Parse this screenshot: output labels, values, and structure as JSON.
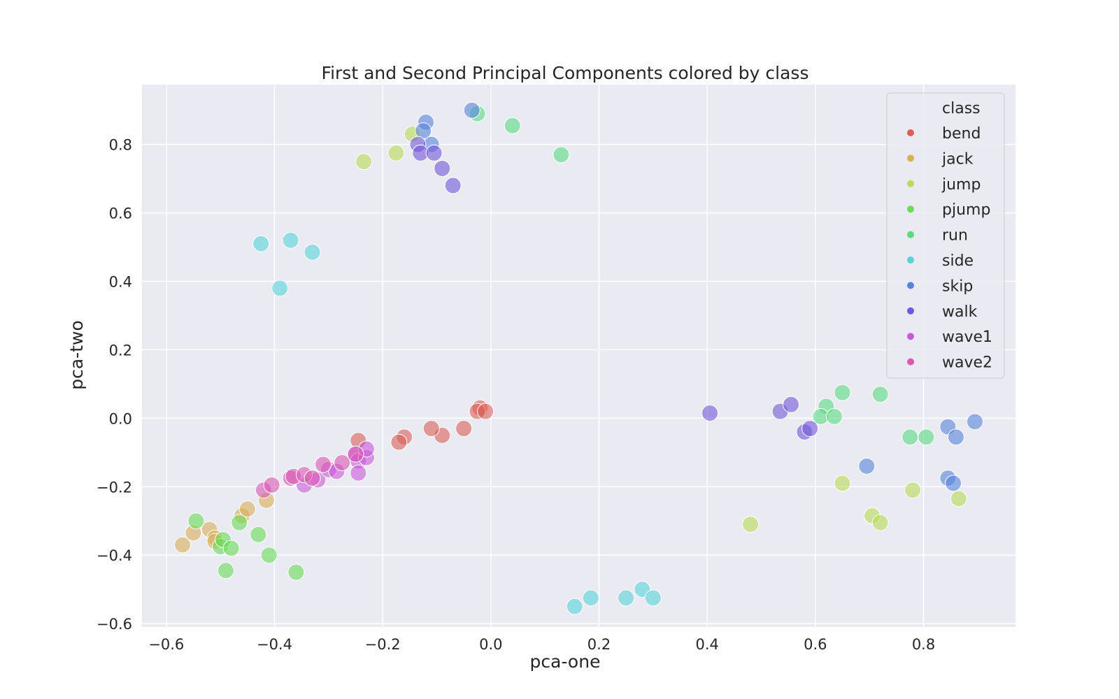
{
  "chart_data": {
    "type": "scatter",
    "title": "First and Second Principal Components colored by class",
    "xlabel": "pca-one",
    "ylabel": "pca-two",
    "xlim": [
      -0.645,
      0.97
    ],
    "ylim": [
      -0.61,
      0.975
    ],
    "xticks": [
      -0.6,
      -0.4,
      -0.2,
      0.0,
      0.2,
      0.4,
      0.6,
      0.8
    ],
    "yticks": [
      -0.6,
      -0.4,
      -0.2,
      0.0,
      0.2,
      0.4,
      0.6,
      0.8
    ],
    "xtick_labels": [
      "−0.6",
      "−0.4",
      "−0.2",
      "0.0",
      "0.2",
      "0.4",
      "0.6",
      "0.8"
    ],
    "ytick_labels": [
      "−0.6",
      "−0.4",
      "−0.2",
      "0.0",
      "0.2",
      "0.4",
      "0.6",
      "0.8"
    ],
    "grid": true,
    "legend": {
      "title": "class",
      "placement": "top-right"
    },
    "series": [
      {
        "name": "bend",
        "color": "#db5f57",
        "points": [
          [
            -0.02,
            0.03
          ],
          [
            -0.025,
            0.02
          ],
          [
            -0.01,
            0.02
          ],
          [
            -0.05,
            -0.03
          ],
          [
            -0.09,
            -0.05
          ],
          [
            -0.11,
            -0.03
          ],
          [
            -0.16,
            -0.055
          ],
          [
            -0.17,
            -0.07
          ],
          [
            -0.245,
            -0.065
          ]
        ]
      },
      {
        "name": "jack",
        "color": "#dbae57",
        "points": [
          [
            -0.57,
            -0.37
          ],
          [
            -0.55,
            -0.335
          ],
          [
            -0.52,
            -0.325
          ],
          [
            -0.51,
            -0.35
          ],
          [
            -0.51,
            -0.36
          ],
          [
            -0.46,
            -0.285
          ],
          [
            -0.45,
            -0.265
          ],
          [
            -0.415,
            -0.24
          ]
        ]
      },
      {
        "name": "jump",
        "color": "#b9db57",
        "points": [
          [
            -0.235,
            0.75
          ],
          [
            -0.175,
            0.775
          ],
          [
            -0.145,
            0.83
          ],
          [
            0.48,
            -0.31
          ],
          [
            0.65,
            -0.19
          ],
          [
            0.705,
            -0.285
          ],
          [
            0.72,
            -0.305
          ],
          [
            0.78,
            -0.21
          ],
          [
            0.865,
            -0.235
          ]
        ]
      },
      {
        "name": "pjump",
        "color": "#69db57",
        "points": [
          [
            -0.545,
            -0.3
          ],
          [
            -0.5,
            -0.375
          ],
          [
            -0.495,
            -0.355
          ],
          [
            -0.48,
            -0.38
          ],
          [
            -0.465,
            -0.305
          ],
          [
            -0.49,
            -0.445
          ],
          [
            -0.43,
            -0.34
          ],
          [
            -0.41,
            -0.4
          ],
          [
            -0.36,
            -0.45
          ]
        ]
      },
      {
        "name": "run",
        "color": "#57db80",
        "points": [
          [
            -0.025,
            0.89
          ],
          [
            0.04,
            0.855
          ],
          [
            0.13,
            0.77
          ],
          [
            0.62,
            0.035
          ],
          [
            0.61,
            0.005
          ],
          [
            0.635,
            0.005
          ],
          [
            0.65,
            0.075
          ],
          [
            0.72,
            0.07
          ],
          [
            0.775,
            -0.055
          ],
          [
            0.805,
            -0.055
          ]
        ]
      },
      {
        "name": "side",
        "color": "#57d3db",
        "points": [
          [
            -0.425,
            0.51
          ],
          [
            -0.37,
            0.52
          ],
          [
            -0.33,
            0.485
          ],
          [
            -0.39,
            0.38
          ],
          [
            0.155,
            -0.55
          ],
          [
            0.185,
            -0.525
          ],
          [
            0.25,
            -0.525
          ],
          [
            0.28,
            -0.5
          ],
          [
            0.3,
            -0.525
          ]
        ]
      },
      {
        "name": "skip",
        "color": "#5784db",
        "points": [
          [
            -0.035,
            0.9
          ],
          [
            -0.12,
            0.865
          ],
          [
            -0.125,
            0.84
          ],
          [
            -0.11,
            0.8
          ],
          [
            0.695,
            -0.14
          ],
          [
            0.845,
            -0.025
          ],
          [
            0.86,
            -0.055
          ],
          [
            0.895,
            -0.01
          ],
          [
            0.845,
            -0.175
          ],
          [
            0.855,
            -0.19
          ]
        ]
      },
      {
        "name": "walk",
        "color": "#7157db",
        "points": [
          [
            -0.135,
            0.8
          ],
          [
            -0.13,
            0.775
          ],
          [
            -0.105,
            0.775
          ],
          [
            -0.09,
            0.73
          ],
          [
            -0.07,
            0.68
          ],
          [
            0.405,
            0.015
          ],
          [
            0.535,
            0.02
          ],
          [
            0.555,
            0.04
          ],
          [
            0.58,
            -0.04
          ],
          [
            0.59,
            -0.03
          ]
        ]
      },
      {
        "name": "wave1",
        "color": "#c957db",
        "points": [
          [
            -0.345,
            -0.195
          ],
          [
            -0.32,
            -0.18
          ],
          [
            -0.3,
            -0.15
          ],
          [
            -0.285,
            -0.155
          ],
          [
            -0.25,
            -0.105
          ],
          [
            -0.245,
            -0.125
          ],
          [
            -0.245,
            -0.16
          ],
          [
            -0.23,
            -0.115
          ],
          [
            -0.23,
            -0.09
          ]
        ]
      },
      {
        "name": "wave2",
        "color": "#db57b2",
        "points": [
          [
            -0.42,
            -0.21
          ],
          [
            -0.405,
            -0.195
          ],
          [
            -0.37,
            -0.175
          ],
          [
            -0.365,
            -0.17
          ],
          [
            -0.345,
            -0.165
          ],
          [
            -0.33,
            -0.175
          ],
          [
            -0.31,
            -0.135
          ],
          [
            -0.275,
            -0.13
          ],
          [
            -0.25,
            -0.105
          ]
        ]
      }
    ]
  }
}
